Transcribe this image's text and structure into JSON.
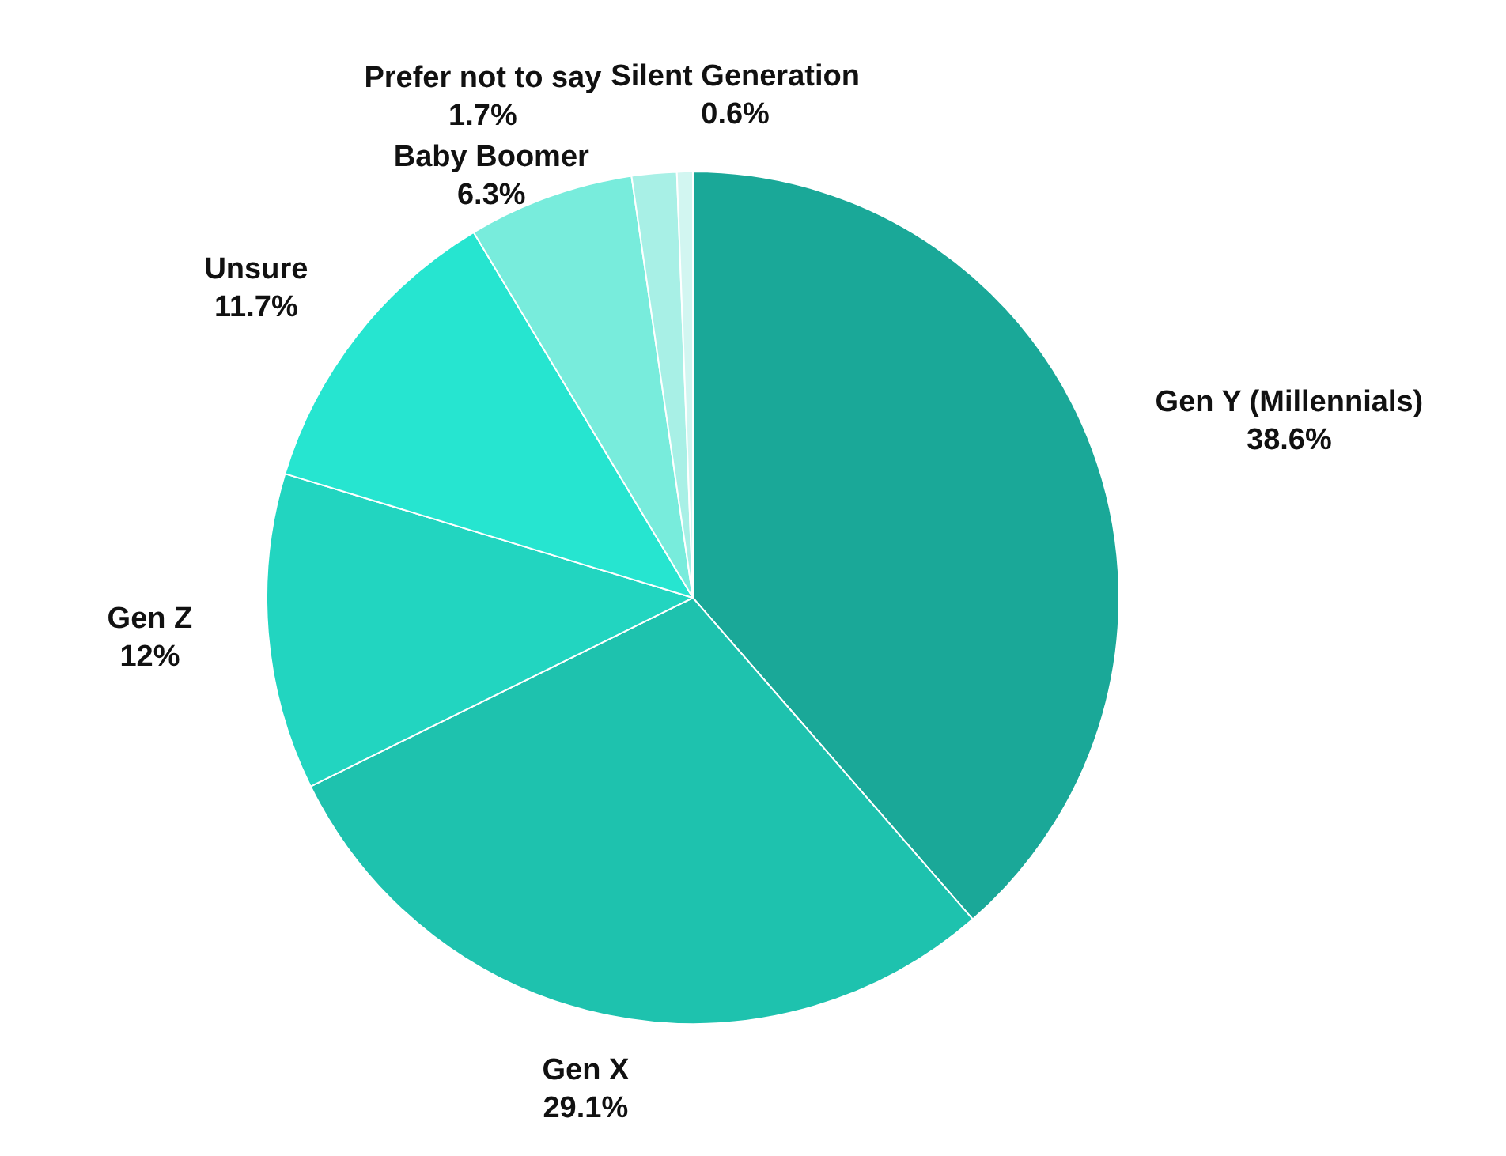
{
  "chart_data": {
    "type": "pie",
    "categories": [
      "Gen Y (Millennials)",
      "Gen X",
      "Gen Z",
      "Unsure",
      "Baby Boomer",
      "Prefer not to say",
      "Silent Generation"
    ],
    "values": [
      38.6,
      29.1,
      12,
      11.7,
      6.3,
      1.7,
      0.6
    ],
    "value_labels": [
      "38.6%",
      "29.1%",
      "12%",
      "11.7%",
      "6.3%",
      "1.7%",
      "0.6%"
    ],
    "colors": [
      "#1aa898",
      "#1ec2ae",
      "#22d5c0",
      "#26e5d0",
      "#78ecdc",
      "#a8f0e6",
      "#d2f6f1"
    ],
    "legend": false
  }
}
